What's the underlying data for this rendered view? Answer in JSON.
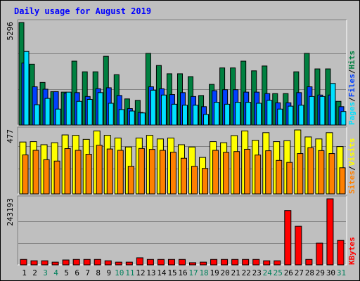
{
  "title": "Daily usage for August 2019",
  "colors": {
    "background": "#bfbfbf",
    "title": "#0000ff",
    "hits": "#008040",
    "files": "#0040ff",
    "pages": "#00e0ff",
    "visits": "#ffff00",
    "sites": "#ff8000",
    "kbytes": "#ff0000",
    "weekend_label": "#00805c",
    "weekday_label": "#000000"
  },
  "chart_data": [
    {
      "type": "bar",
      "panel": "hits-files-pages",
      "ymax_label": "5296",
      "ylim": [
        0,
        5296
      ],
      "grid": true,
      "legend": {
        "placement": "right",
        "parts": [
          "Pages",
          "/",
          "Files",
          "/",
          "Hits"
        ]
      },
      "categories": [
        "1",
        "2",
        "3",
        "4",
        "5",
        "6",
        "7",
        "8",
        "9",
        "10",
        "11",
        "12",
        "13",
        "14",
        "15",
        "16",
        "17",
        "18",
        "19",
        "20",
        "21",
        "22",
        "23",
        "24",
        "25",
        "26",
        "27",
        "28",
        "29",
        "30",
        "31"
      ],
      "weekend_days": [
        3,
        4,
        10,
        11,
        17,
        18,
        24,
        25,
        31
      ],
      "series": [
        {
          "name": "Hits",
          "values": [
            5296,
            3143,
            2200,
            1725,
            1700,
            3300,
            2750,
            2750,
            3550,
            2600,
            1350,
            1275,
            3700,
            3075,
            2650,
            2650,
            2500,
            1525,
            2100,
            2950,
            2950,
            3300,
            2800,
            3050,
            1625,
            1625,
            2750,
            3700,
            2900,
            2900,
            1225
          ]
        },
        {
          "name": "Files",
          "values": [
            3200,
            1975,
            1850,
            1725,
            1650,
            1675,
            1475,
            1875,
            1925,
            1525,
            850,
            650,
            1975,
            1875,
            1575,
            1675,
            1475,
            950,
            1775,
            1825,
            1825,
            1700,
            1700,
            1625,
            1150,
            1150,
            1675,
            1975,
            1550,
            1550,
            950
          ]
        },
        {
          "name": "Pages",
          "values": [
            3800,
            1050,
            1375,
            825,
            1700,
            1225,
            1325,
            1675,
            1125,
            800,
            725,
            625,
            1800,
            1550,
            1075,
            1025,
            1025,
            550,
            1175,
            1075,
            1175,
            1175,
            1125,
            1275,
            825,
            975,
            1025,
            1475,
            1475,
            2150,
            700
          ]
        }
      ]
    },
    {
      "type": "bar",
      "panel": "visits-sites",
      "ymax_label": "477",
      "ylim": [
        0,
        477
      ],
      "grid": true,
      "legend": {
        "placement": "right",
        "parts": [
          "Sites",
          "/",
          "Visits"
        ]
      },
      "categories": [
        "1",
        "2",
        "3",
        "4",
        "5",
        "6",
        "7",
        "8",
        "9",
        "10",
        "11",
        "12",
        "13",
        "14",
        "15",
        "16",
        "17",
        "18",
        "19",
        "20",
        "21",
        "22",
        "23",
        "24",
        "25",
        "26",
        "27",
        "28",
        "29",
        "30",
        "31"
      ],
      "series": [
        {
          "name": "Visits",
          "values": [
            387,
            390,
            367,
            382,
            440,
            437,
            407,
            470,
            437,
            417,
            350,
            417,
            437,
            410,
            417,
            367,
            350,
            272,
            390,
            382,
            435,
            470,
            400,
            457,
            390,
            397,
            477,
            425,
            410,
            457,
            353
          ]
        },
        {
          "name": "Sites",
          "values": [
            291,
            325,
            255,
            245,
            338,
            325,
            296,
            363,
            335,
            325,
            206,
            339,
            332,
            325,
            311,
            266,
            206,
            190,
            325,
            310,
            316,
            333,
            290,
            322,
            250,
            235,
            301,
            345,
            323,
            301,
            195
          ]
        }
      ]
    },
    {
      "type": "bar",
      "panel": "kbytes",
      "ymax_label": "243193",
      "ylim": [
        0,
        243193
      ],
      "grid": true,
      "legend": {
        "placement": "right",
        "parts": [
          "KBytes"
        ]
      },
      "categories": [
        "1",
        "2",
        "3",
        "4",
        "5",
        "6",
        "7",
        "8",
        "9",
        "10",
        "11",
        "12",
        "13",
        "14",
        "15",
        "16",
        "17",
        "18",
        "19",
        "20",
        "21",
        "22",
        "23",
        "24",
        "25",
        "26",
        "27",
        "28",
        "29",
        "30",
        "31"
      ],
      "series": [
        {
          "name": "KBytes",
          "values": [
            20000,
            15000,
            15000,
            10000,
            18000,
            20000,
            20000,
            20000,
            15000,
            10000,
            10000,
            26000,
            20000,
            20000,
            20000,
            20000,
            8000,
            10000,
            20000,
            20000,
            20000,
            20000,
            20000,
            15000,
            15000,
            200000,
            142000,
            20000,
            80000,
            243193,
            90000
          ]
        }
      ]
    }
  ]
}
